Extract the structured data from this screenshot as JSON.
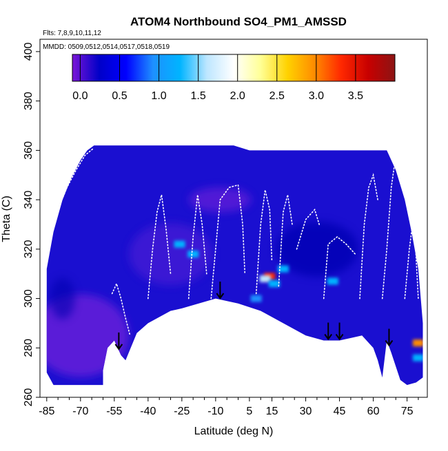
{
  "chart_data": {
    "type": "heatmap",
    "title": "ATOM4 Northbound SO4_PM1_AMSSD",
    "subtitle_flights": "Flts: 7,8,9,10,11,12",
    "subtitle_dates": "MMDD: 0509,0512,0514,0517,0518,0519",
    "xlabel": "Latitude (deg N)",
    "ylabel": "Theta (C)",
    "xlim": [
      -88,
      84
    ],
    "ylim": [
      260,
      405
    ],
    "x_ticks": [
      -85,
      -70,
      -55,
      -40,
      -25,
      -10,
      5,
      15,
      30,
      45,
      60,
      75
    ],
    "x_tick_labels": [
      "-85",
      "-70",
      "-55",
      "-40",
      "-25",
      "-10",
      "5",
      "15",
      "30",
      "45",
      "60",
      "75"
    ],
    "y_ticks": [
      260,
      280,
      300,
      320,
      340,
      360,
      380,
      400
    ],
    "y_tick_labels": [
      "260",
      "280",
      "300",
      "320",
      "340",
      "360",
      "380",
      "400"
    ],
    "colorbar": {
      "range": [
        -0.1,
        4.0
      ],
      "ticks": [
        0.0,
        0.5,
        1.0,
        1.5,
        2.0,
        2.5,
        3.0,
        3.5
      ],
      "tick_labels": [
        "0.0",
        "0.5",
        "1.0",
        "1.5",
        "2.0",
        "2.5",
        "3.0",
        "3.5"
      ],
      "colors": [
        "#7a16d6",
        "#0000c8",
        "#0000ff",
        "#1e90ff",
        "#00b4ff",
        "#bde6ff",
        "#ffffff",
        "#ffff96",
        "#ffd200",
        "#ff8c00",
        "#ff2800",
        "#c80000",
        "#8c1414"
      ]
    },
    "boundary_upper": [
      [
        -85,
        312
      ],
      [
        -82,
        327
      ],
      [
        -78,
        340
      ],
      [
        -74,
        349
      ],
      [
        -70,
        356
      ],
      [
        -67,
        360
      ],
      [
        -64,
        362
      ],
      [
        -58,
        362
      ],
      [
        -20,
        362
      ],
      [
        -2,
        362
      ],
      [
        5,
        360
      ],
      [
        20,
        360
      ],
      [
        60,
        360
      ],
      [
        66,
        360
      ],
      [
        70,
        352
      ],
      [
        74,
        340
      ],
      [
        77,
        327
      ],
      [
        80,
        312
      ],
      [
        82,
        290
      ]
    ],
    "boundary_lower": [
      [
        82,
        268
      ],
      [
        79,
        266
      ],
      [
        75,
        265
      ],
      [
        72,
        267
      ],
      [
        68,
        278
      ],
      [
        66,
        283
      ],
      [
        64,
        268
      ],
      [
        62,
        275
      ],
      [
        60,
        280
      ],
      [
        55,
        285
      ],
      [
        45,
        283
      ],
      [
        38,
        283
      ],
      [
        30,
        285
      ],
      [
        20,
        290
      ],
      [
        10,
        295
      ],
      [
        0,
        298
      ],
      [
        -10,
        300
      ],
      [
        -25,
        296
      ],
      [
        -30,
        295
      ],
      [
        -40,
        290
      ],
      [
        -45,
        286
      ],
      [
        -50,
        275
      ],
      [
        -52,
        277
      ],
      [
        -55,
        283
      ],
      [
        -58,
        280
      ],
      [
        -60,
        271
      ],
      [
        -60,
        265
      ],
      [
        -82,
        265
      ],
      [
        -85,
        270
      ]
    ],
    "arrows_lat": [
      -53,
      -8,
      40,
      45,
      67
    ],
    "hotspots": [
      {
        "lat": 14,
        "theta": 309,
        "value": 3.3
      },
      {
        "lat": 12,
        "theta": 308,
        "value": 1.6
      },
      {
        "lat": 16,
        "theta": 306,
        "value": 1.4
      },
      {
        "lat": -26,
        "theta": 322,
        "value": 1.3
      },
      {
        "lat": -20,
        "theta": 318,
        "value": 1.1
      },
      {
        "lat": 42,
        "theta": 307,
        "value": 1.2
      },
      {
        "lat": 80,
        "theta": 282,
        "value": 3.0
      },
      {
        "lat": 80,
        "theta": 276,
        "value": 1.3
      },
      {
        "lat": 20,
        "theta": 312,
        "value": 1.1
      },
      {
        "lat": 8,
        "theta": 300,
        "value": 1.0
      }
    ],
    "flight_tracks": [
      {
        "name": "track-1",
        "points": [
          [
            -84,
            330
          ],
          [
            -80,
            336
          ],
          [
            -76,
            345
          ],
          [
            -72,
            352
          ],
          [
            -68,
            358
          ],
          [
            -64,
            361
          ]
        ]
      },
      {
        "name": "track-2",
        "points": [
          [
            -56,
            302
          ],
          [
            -54,
            306
          ],
          [
            -52,
            300
          ],
          [
            -50,
            292
          ],
          [
            -48,
            285
          ]
        ]
      },
      {
        "name": "track-3",
        "points": [
          [
            -40,
            300
          ],
          [
            -38,
            320
          ],
          [
            -36,
            335
          ],
          [
            -34,
            342
          ],
          [
            -32,
            328
          ],
          [
            -30,
            310
          ]
        ]
      },
      {
        "name": "track-4",
        "points": [
          [
            -22,
            300
          ],
          [
            -20,
            325
          ],
          [
            -18,
            342
          ],
          [
            -16,
            330
          ],
          [
            -14,
            310
          ]
        ]
      },
      {
        "name": "track-5",
        "points": [
          [
            -12,
            300
          ],
          [
            -8,
            340
          ],
          [
            -4,
            345
          ],
          [
            0,
            346
          ],
          [
            2,
            330
          ],
          [
            3,
            310
          ]
        ]
      },
      {
        "name": "track-6",
        "points": [
          [
            8,
            302
          ],
          [
            10,
            330
          ],
          [
            12,
            344
          ],
          [
            14,
            336
          ],
          [
            15,
            315
          ]
        ]
      },
      {
        "name": "track-7",
        "points": [
          [
            18,
            305
          ],
          [
            20,
            335
          ],
          [
            22,
            342
          ],
          [
            24,
            330
          ]
        ]
      },
      {
        "name": "track-8",
        "points": [
          [
            26,
            320
          ],
          [
            30,
            332
          ],
          [
            34,
            336
          ],
          [
            36,
            330
          ]
        ]
      },
      {
        "name": "track-9",
        "points": [
          [
            38,
            300
          ],
          [
            40,
            322
          ],
          [
            44,
            325
          ],
          [
            48,
            322
          ],
          [
            52,
            318
          ]
        ]
      },
      {
        "name": "track-10",
        "points": [
          [
            54,
            300
          ],
          [
            56,
            330
          ],
          [
            58,
            345
          ],
          [
            60,
            350
          ],
          [
            62,
            340
          ]
        ]
      },
      {
        "name": "track-11",
        "points": [
          [
            64,
            300
          ],
          [
            66,
            320
          ],
          [
            68,
            345
          ],
          [
            70,
            358
          ],
          [
            72,
            350
          ]
        ]
      },
      {
        "name": "track-12",
        "points": [
          [
            74,
            300
          ],
          [
            76,
            320
          ],
          [
            78,
            334
          ],
          [
            80,
            300
          ]
        ]
      }
    ]
  }
}
